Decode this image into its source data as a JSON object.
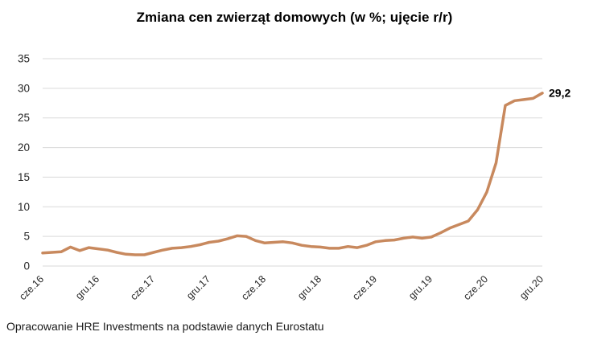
{
  "title": "Zmiana cen zwierząt domowych (w %; ujęcie r/r)",
  "footer": "Opracowanie HRE Investments na podstawie danych Eurostatu",
  "colors": {
    "line": "#C8895E",
    "gridline": "#D9D9D9",
    "axis_text": "#262626",
    "title_text": "#000000",
    "annotation_text": "#000000",
    "background": "#FFFFFF"
  },
  "chart_data": {
    "type": "line",
    "title": "Zmiana cen zwierząt domowych (w %; ujęcie r/r)",
    "xlabel": "",
    "ylabel": "",
    "ylim": [
      0,
      35
    ],
    "grid": "horizontal",
    "legend": "none",
    "end_label": "29,2",
    "y_tick_labels": [
      "0",
      "5",
      "10",
      "15",
      "20",
      "25",
      "30",
      "35"
    ],
    "y_tick_values": [
      0,
      5,
      10,
      15,
      20,
      25,
      30,
      35
    ],
    "x_tick_labels": [
      "cze.16",
      "gru.16",
      "cze.17",
      "gru.17",
      "cze.18",
      "gru.18",
      "cze.19",
      "gru.19",
      "cze.20",
      "gru.20"
    ],
    "x_tick_every": 6,
    "x": [
      "cze.16",
      "lip.16",
      "sie.16",
      "wrz.16",
      "paź.16",
      "lis.16",
      "gru.16",
      "sty.17",
      "lut.17",
      "mar.17",
      "kwi.17",
      "maj.17",
      "cze.17",
      "lip.17",
      "sie.17",
      "wrz.17",
      "paź.17",
      "lis.17",
      "gru.17",
      "sty.18",
      "lut.18",
      "mar.18",
      "kwi.18",
      "maj.18",
      "cze.18",
      "lip.18",
      "sie.18",
      "wrz.18",
      "paź.18",
      "lis.18",
      "gru.18",
      "sty.19",
      "lut.19",
      "mar.19",
      "kwi.19",
      "maj.19",
      "cze.19",
      "lip.19",
      "sie.19",
      "wrz.19",
      "paź.19",
      "lis.19",
      "gru.19",
      "sty.20",
      "lut.20",
      "mar.20",
      "kwi.20",
      "maj.20",
      "cze.20",
      "lip.20",
      "sie.20",
      "wrz.20",
      "paź.20",
      "lis.20",
      "gru.20"
    ],
    "values": [
      2.2,
      2.3,
      2.4,
      3.2,
      2.6,
      3.1,
      2.9,
      2.7,
      2.3,
      2.0,
      1.9,
      1.9,
      2.3,
      2.7,
      3.0,
      3.1,
      3.3,
      3.6,
      4.0,
      4.2,
      4.6,
      5.1,
      5.0,
      4.3,
      3.9,
      4.0,
      4.1,
      3.9,
      3.5,
      3.3,
      3.2,
      3.0,
      3.0,
      3.3,
      3.1,
      3.5,
      4.1,
      4.3,
      4.4,
      4.7,
      4.9,
      4.7,
      4.9,
      5.6,
      6.4,
      7.0,
      7.6,
      9.5,
      12.5,
      17.4,
      27.1,
      27.9,
      28.1,
      28.3,
      29.2
    ]
  }
}
